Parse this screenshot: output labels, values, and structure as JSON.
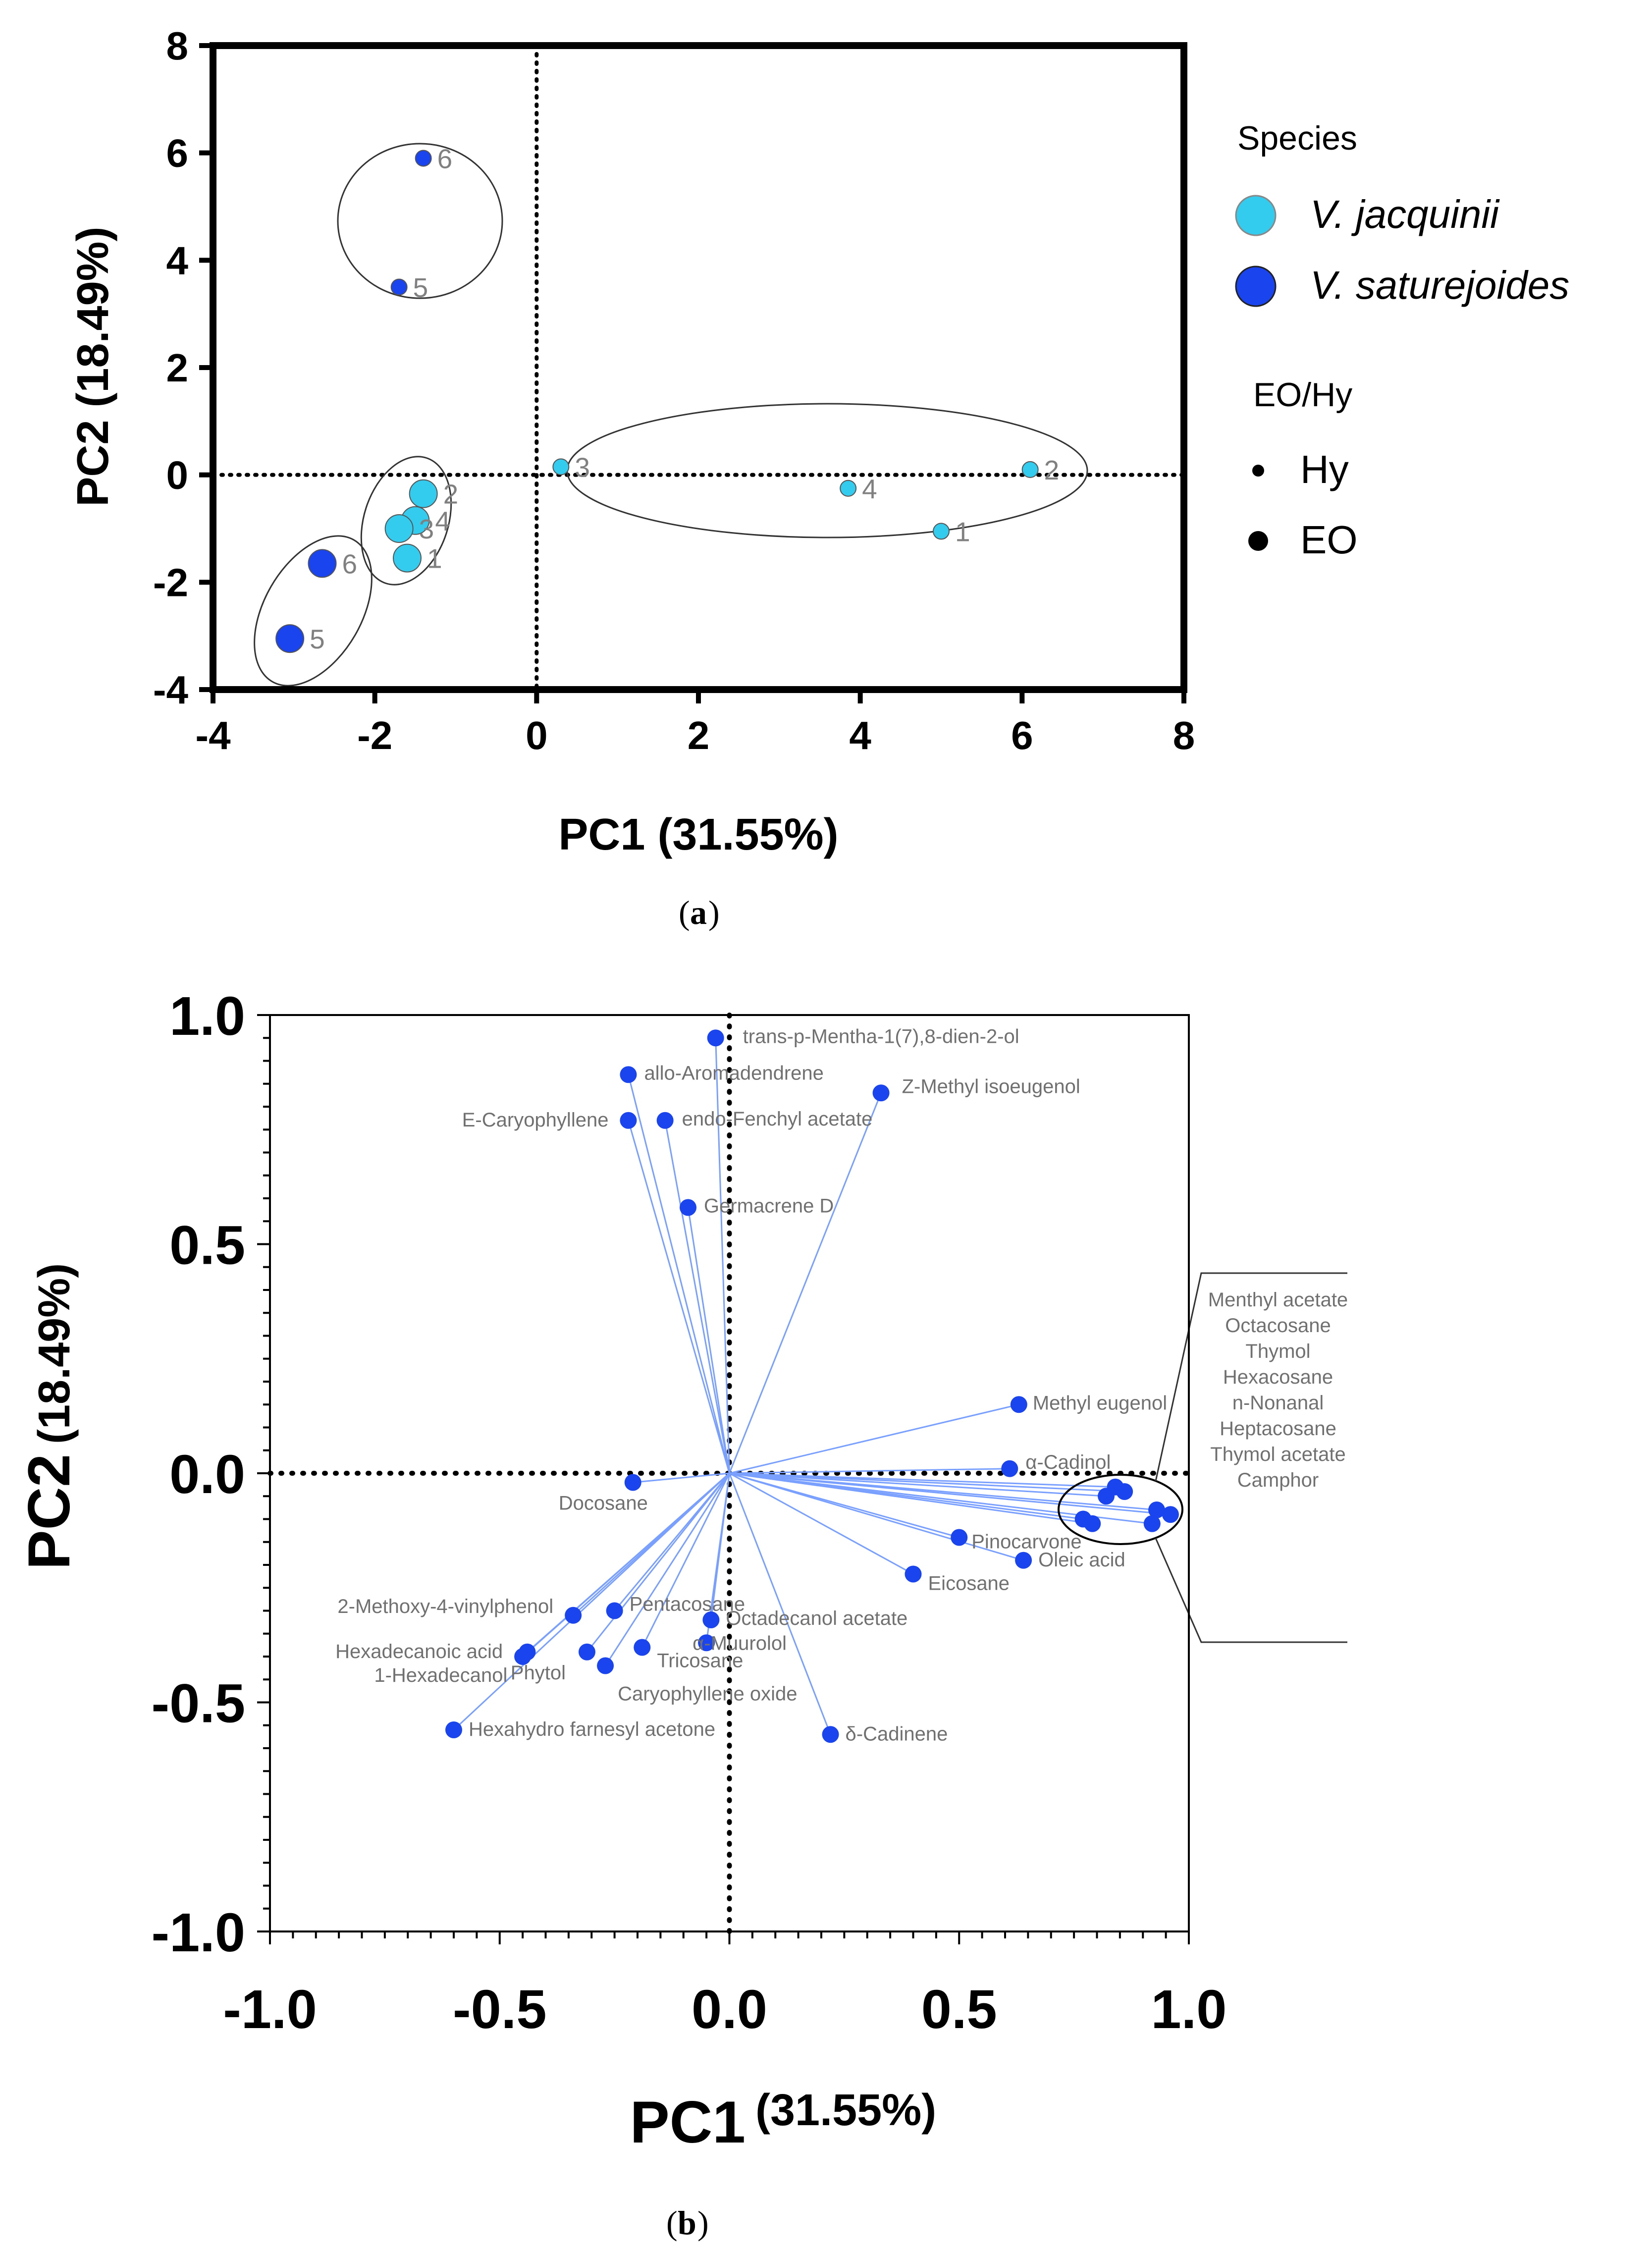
{
  "chart_data": [
    {
      "id": "a",
      "type": "scatter",
      "title": "",
      "xlabel": "PC1 (31.55%)",
      "ylabel": "PC2 (18.49%)",
      "xlim": [
        -4,
        8
      ],
      "ylim": [
        -4,
        8
      ],
      "xticks": [
        "-4",
        "-2",
        "0",
        "2",
        "4",
        "6",
        "8"
      ],
      "yticks": [
        "-4",
        "-2",
        "0",
        "2",
        "4",
        "6",
        "8"
      ],
      "tick_values": [
        -4,
        -2,
        0,
        2,
        4,
        6,
        8
      ],
      "legend": {
        "species_title": "Species",
        "species": [
          {
            "name": "V. jacquinii",
            "color": "#33ccee"
          },
          {
            "name": "V. saturejoides",
            "color": "#1a44ee"
          }
        ],
        "type_title": "EO/Hy",
        "types": [
          "Hy",
          "EO"
        ]
      },
      "points": [
        {
          "species": "V. saturejoides",
          "kind": "Hy",
          "label": "6",
          "x": -1.4,
          "y": 5.9
        },
        {
          "species": "V. saturejoides",
          "kind": "Hy",
          "label": "5",
          "x": -1.7,
          "y": 3.5
        },
        {
          "species": "V. jacquinii",
          "kind": "EO",
          "label": "2",
          "x": -1.4,
          "y": -0.35
        },
        {
          "species": "V. jacquinii",
          "kind": "EO",
          "label": "4",
          "x": -1.5,
          "y": -0.85
        },
        {
          "species": "V. jacquinii",
          "kind": "EO",
          "label": "3",
          "x": -1.7,
          "y": -1.0
        },
        {
          "species": "V. jacquinii",
          "kind": "EO",
          "label": "1",
          "x": -1.6,
          "y": -1.55
        },
        {
          "species": "V. saturejoides",
          "kind": "EO",
          "label": "6",
          "x": -2.65,
          "y": -1.65
        },
        {
          "species": "V. saturejoides",
          "kind": "EO",
          "label": "5",
          "x": -3.05,
          "y": -3.05
        },
        {
          "species": "V. jacquinii",
          "kind": "Hy",
          "label": "3",
          "x": 0.3,
          "y": 0.15
        },
        {
          "species": "V. jacquinii",
          "kind": "Hy",
          "label": "2",
          "x": 6.1,
          "y": 0.1
        },
        {
          "species": "V. jacquinii",
          "kind": "Hy",
          "label": "4",
          "x": 3.85,
          "y": -0.25
        },
        {
          "species": "V. jacquinii",
          "kind": "Hy",
          "label": "1",
          "x": 5.0,
          "y": -1.05
        }
      ],
      "caption_letter": "a"
    },
    {
      "id": "b",
      "type": "scatter",
      "title": "",
      "xlabel": "PC1",
      "xlabel_pct": "(31.55%)",
      "ylabel": "PC2",
      "ylabel_pct": "(18.49%)",
      "xlim": [
        -1.0,
        1.0
      ],
      "ylim": [
        -1.0,
        1.0
      ],
      "xticks": [
        "-1.0",
        "-0.5",
        "0.0",
        "0.5",
        "1.0"
      ],
      "yticks": [
        "-1.0",
        "-0.5",
        "0.0",
        "0.5",
        "1.0"
      ],
      "tick_values": [
        -1.0,
        -0.5,
        0.0,
        0.5,
        1.0
      ],
      "loadings": [
        {
          "name": "trans-p-Mentha-1(7),8-dien-2-ol",
          "x": -0.03,
          "y": 0.95
        },
        {
          "name": "allo-Aromadendrene",
          "x": -0.22,
          "y": 0.87
        },
        {
          "name": "E-Caryophyllene",
          "x": -0.22,
          "y": 0.77
        },
        {
          "name": "endo-Fenchyl acetate",
          "x": -0.14,
          "y": 0.77
        },
        {
          "name": "Z-Methyl isoeugenol",
          "x": 0.33,
          "y": 0.83
        },
        {
          "name": "Germacrene D",
          "x": -0.09,
          "y": 0.58
        },
        {
          "name": "Methyl eugenol",
          "x": 0.63,
          "y": 0.15
        },
        {
          "name": "α-Cadinol",
          "x": 0.61,
          "y": 0.01
        },
        {
          "name": "Docosane",
          "x": -0.21,
          "y": -0.02
        },
        {
          "name": "Pinocarvone",
          "x": 0.5,
          "y": -0.14
        },
        {
          "name": "Oleic acid",
          "x": 0.64,
          "y": -0.19
        },
        {
          "name": "Eicosane",
          "x": 0.4,
          "y": -0.22
        },
        {
          "name": "2-Methoxy-4-vinylphenol",
          "x": -0.34,
          "y": -0.31
        },
        {
          "name": "Pentacosane",
          "x": -0.25,
          "y": -0.3
        },
        {
          "name": "Octadecanol acetate",
          "x": -0.04,
          "y": -0.32
        },
        {
          "name": "α-Muurolol",
          "x": -0.05,
          "y": -0.37
        },
        {
          "name": "Hexadecanoic acid",
          "x": -0.45,
          "y": -0.4
        },
        {
          "name": "1-Hexadecanol",
          "x": -0.44,
          "y": -0.39
        },
        {
          "name": "Phytol",
          "x": -0.31,
          "y": -0.39
        },
        {
          "name": "Tricosane",
          "x": -0.19,
          "y": -0.38
        },
        {
          "name": "Caryophyllene oxide",
          "x": -0.27,
          "y": -0.42
        },
        {
          "name": "Hexahydro farnesyl acetone",
          "x": -0.6,
          "y": -0.56
        },
        {
          "name": "δ-Cadinene",
          "x": 0.22,
          "y": -0.57
        },
        {
          "name": "Menthyl acetate",
          "x": 0.82,
          "y": -0.05
        },
        {
          "name": "Octacosane",
          "x": 0.84,
          "y": -0.03
        },
        {
          "name": "Thymol",
          "x": 0.86,
          "y": -0.04
        },
        {
          "name": "Hexacosane",
          "x": 0.93,
          "y": -0.08
        },
        {
          "name": "n-Nonanal",
          "x": 0.96,
          "y": -0.09
        },
        {
          "name": "Heptacosane",
          "x": 0.92,
          "y": -0.11
        },
        {
          "name": "Thymol acetate",
          "x": 0.77,
          "y": -0.1
        },
        {
          "name": "Camphor",
          "x": 0.79,
          "y": -0.11
        }
      ],
      "cluster_labels": [
        "Menthyl acetate",
        "Octacosane",
        "Thymol",
        "Hexacosane",
        "n-Nonanal",
        "Heptacosane",
        "Thymol acetate",
        "Camphor"
      ],
      "caption_letter": "b",
      "colors": {
        "point": "#1a44ee",
        "arrow": "#7aa0ff"
      }
    }
  ]
}
